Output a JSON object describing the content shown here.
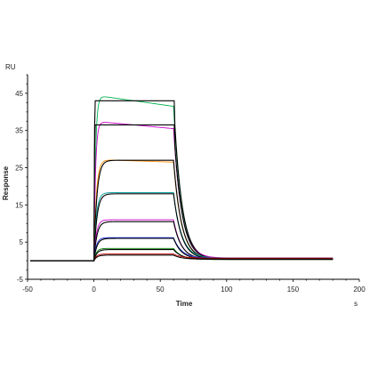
{
  "chart_data": {
    "type": "line",
    "title": "",
    "xlabel": "Time",
    "ylabel": "Response",
    "y_unit": "RU",
    "x_unit": "s",
    "xlim": [
      -50,
      200
    ],
    "ylim": [
      -5,
      50
    ],
    "x_ticks": [
      -50,
      0,
      50,
      100,
      150,
      200
    ],
    "y_ticks": [
      -5,
      5,
      15,
      25,
      35,
      45
    ],
    "grid": false,
    "legend": "none",
    "association_phase": [
      0,
      60
    ],
    "dissociation_end": 180,
    "series": [
      {
        "color": "#00b050",
        "plateau": 44.5,
        "end_assoc": 41.5,
        "fit": false,
        "kind": "overshoot"
      },
      {
        "color": "#000000",
        "plateau": 43.0,
        "end_assoc": 43.0,
        "fit": true,
        "kind": "square"
      },
      {
        "color": "#cc00cc",
        "plateau": 37.5,
        "end_assoc": 35.5,
        "fit": false,
        "kind": "overshoot"
      },
      {
        "color": "#000000",
        "plateau": 36.5,
        "end_assoc": 35.8,
        "fit": true,
        "kind": "square"
      },
      {
        "color": "#ff8c00",
        "plateau": 27.2,
        "end_assoc": 26.5,
        "fit": false,
        "kind": "rise"
      },
      {
        "color": "#000000",
        "plateau": 27.0,
        "end_assoc": 27.0,
        "fit": true,
        "kind": "rise"
      },
      {
        "color": "#00a0a0",
        "plateau": 18.3,
        "end_assoc": 18.3,
        "fit": false,
        "kind": "rise"
      },
      {
        "color": "#000000",
        "plateau": 18.0,
        "end_assoc": 18.0,
        "fit": true,
        "kind": "rise"
      },
      {
        "color": "#cc00cc",
        "plateau": 11.0,
        "end_assoc": 11.0,
        "fit": false,
        "kind": "rise"
      },
      {
        "color": "#000000",
        "plateau": 10.5,
        "end_assoc": 10.5,
        "fit": true,
        "kind": "rise"
      },
      {
        "color": "#2030e0",
        "plateau": 6.2,
        "end_assoc": 6.2,
        "fit": false,
        "kind": "rise"
      },
      {
        "color": "#000000",
        "plateau": 6.0,
        "end_assoc": 6.0,
        "fit": true,
        "kind": "rise"
      },
      {
        "color": "#008000",
        "plateau": 3.3,
        "end_assoc": 3.3,
        "fit": false,
        "kind": "rise"
      },
      {
        "color": "#000000",
        "plateau": 3.0,
        "end_assoc": 3.0,
        "fit": true,
        "kind": "rise"
      },
      {
        "color": "#cc0000",
        "plateau": 1.8,
        "end_assoc": 1.8,
        "fit": false,
        "kind": "rise"
      },
      {
        "color": "#000000",
        "plateau": 1.5,
        "end_assoc": 1.5,
        "fit": true,
        "kind": "rise"
      }
    ]
  }
}
